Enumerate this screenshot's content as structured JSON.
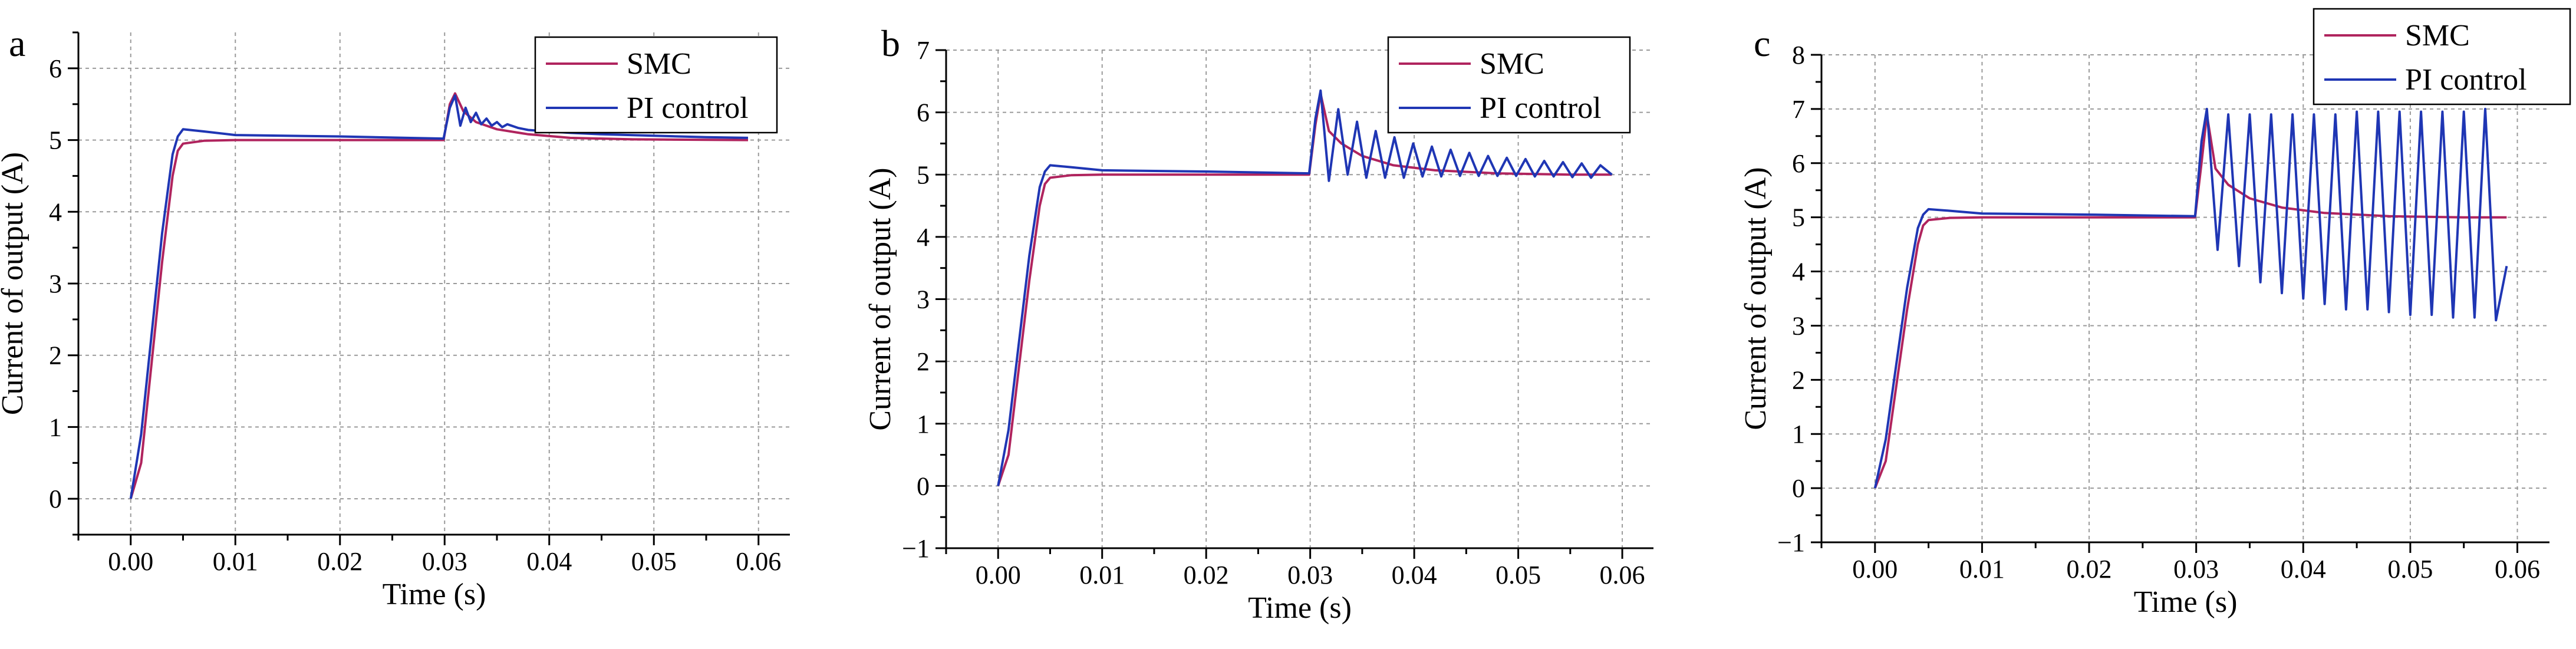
{
  "colors": {
    "smc": "#b0245e",
    "pi": "#1f36b4"
  },
  "chart_data": [
    {
      "panel_label": "a",
      "type": "line",
      "xlabel": "Time (s)",
      "ylabel": "Current of output (A)",
      "xlim": [
        -0.005,
        0.063
      ],
      "ylim": [
        -0.5,
        6.5
      ],
      "xticks": [
        0.0,
        0.01,
        0.02,
        0.03,
        0.04,
        0.05,
        0.06
      ],
      "xtick_labels": [
        "0.00",
        "0.01",
        "0.02",
        "0.03",
        "0.04",
        "0.05",
        "0.06"
      ],
      "yticks": [
        0,
        1,
        2,
        3,
        4,
        5,
        6
      ],
      "ytick_labels": [
        "0",
        "1",
        "2",
        "3",
        "4",
        "5",
        "6"
      ],
      "grid": true,
      "legend": "top-right",
      "series": [
        {
          "name": "SMC",
          "color": "#b0245e",
          "x": [
            0.0,
            0.001,
            0.002,
            0.003,
            0.004,
            0.0045,
            0.005,
            0.007,
            0.01,
            0.02,
            0.0299,
            0.0305,
            0.031,
            0.0318,
            0.033,
            0.035,
            0.038,
            0.042,
            0.048,
            0.059
          ],
          "y": [
            0.0,
            0.5,
            1.9,
            3.3,
            4.5,
            4.85,
            4.95,
            4.99,
            5.0,
            5.0,
            5.0,
            5.5,
            5.65,
            5.4,
            5.25,
            5.15,
            5.08,
            5.03,
            5.01,
            5.0
          ]
        },
        {
          "name": "PI control",
          "color": "#1f36b4",
          "x": [
            0.0,
            0.001,
            0.002,
            0.003,
            0.004,
            0.0045,
            0.005,
            0.007,
            0.01,
            0.02,
            0.0299,
            0.0305,
            0.031,
            0.0315,
            0.032,
            0.0325,
            0.033,
            0.0335,
            0.034,
            0.0345,
            0.035,
            0.0355,
            0.036,
            0.037,
            0.038,
            0.04,
            0.042,
            0.045,
            0.05,
            0.055,
            0.059
          ],
          "y": [
            0.0,
            0.9,
            2.3,
            3.7,
            4.8,
            5.05,
            5.15,
            5.12,
            5.07,
            5.05,
            5.02,
            5.45,
            5.62,
            5.2,
            5.45,
            5.25,
            5.38,
            5.22,
            5.3,
            5.2,
            5.25,
            5.18,
            5.22,
            5.17,
            5.14,
            5.12,
            5.1,
            5.08,
            5.06,
            5.04,
            5.03
          ]
        }
      ]
    },
    {
      "panel_label": "b",
      "type": "line",
      "xlabel": "Time (s)",
      "ylabel": "Current of output (A)",
      "xlim": [
        -0.005,
        0.063
      ],
      "ylim": [
        -1,
        7
      ],
      "xticks": [
        0.0,
        0.01,
        0.02,
        0.03,
        0.04,
        0.05,
        0.06
      ],
      "xtick_labels": [
        "0.00",
        "0.01",
        "0.02",
        "0.03",
        "0.04",
        "0.05",
        "0.06"
      ],
      "yticks": [
        -1,
        0,
        1,
        2,
        3,
        4,
        5,
        6,
        7
      ],
      "ytick_labels": [
        "−1",
        "0",
        "1",
        "2",
        "3",
        "4",
        "5",
        "6",
        "7"
      ],
      "grid": true,
      "legend": "top-right",
      "series": [
        {
          "name": "SMC",
          "color": "#b0245e",
          "x": [
            0.0,
            0.001,
            0.002,
            0.003,
            0.004,
            0.0045,
            0.005,
            0.007,
            0.01,
            0.02,
            0.0299,
            0.0305,
            0.031,
            0.0318,
            0.033,
            0.035,
            0.038,
            0.042,
            0.048,
            0.055,
            0.059
          ],
          "y": [
            0.0,
            0.5,
            1.9,
            3.3,
            4.5,
            4.85,
            4.95,
            4.99,
            5.0,
            5.0,
            5.0,
            5.8,
            6.3,
            5.7,
            5.5,
            5.3,
            5.15,
            5.07,
            5.02,
            5.0,
            5.0
          ]
        },
        {
          "name": "PI control",
          "color": "#1f36b4",
          "x": [
            0.0,
            0.001,
            0.002,
            0.003,
            0.004,
            0.0045,
            0.005,
            0.007,
            0.01,
            0.02,
            0.0299,
            0.0305,
            0.031,
            0.0318,
            0.0327,
            0.0336,
            0.0345,
            0.0354,
            0.0363,
            0.0372,
            0.0381,
            0.039,
            0.0399,
            0.0408,
            0.0417,
            0.0426,
            0.0435,
            0.0444,
            0.0453,
            0.0462,
            0.0471,
            0.048,
            0.0489,
            0.0498,
            0.0507,
            0.0516,
            0.0525,
            0.0534,
            0.0543,
            0.0552,
            0.0561,
            0.057,
            0.0579,
            0.059
          ],
          "y": [
            0.0,
            0.9,
            2.3,
            3.7,
            4.8,
            5.05,
            5.15,
            5.12,
            5.07,
            5.05,
            5.02,
            5.9,
            6.35,
            4.9,
            6.05,
            5.0,
            5.85,
            4.95,
            5.7,
            4.95,
            5.6,
            4.95,
            5.5,
            4.97,
            5.45,
            4.97,
            5.4,
            4.98,
            5.35,
            4.98,
            5.3,
            4.98,
            5.27,
            4.98,
            5.25,
            4.97,
            5.22,
            4.97,
            5.2,
            4.96,
            5.18,
            4.95,
            5.15,
            5.0
          ]
        }
      ]
    },
    {
      "panel_label": "c",
      "type": "line",
      "xlabel": "Time (s)",
      "ylabel": "Current of output (A)",
      "xlim": [
        -0.005,
        0.063
      ],
      "ylim": [
        -1,
        8
      ],
      "xticks": [
        0.0,
        0.01,
        0.02,
        0.03,
        0.04,
        0.05,
        0.06
      ],
      "xtick_labels": [
        "0.00",
        "0.01",
        "0.02",
        "0.03",
        "0.04",
        "0.05",
        "0.06"
      ],
      "yticks": [
        -1,
        0,
        1,
        2,
        3,
        4,
        5,
        6,
        7,
        8
      ],
      "ytick_labels": [
        "−1",
        "0",
        "1",
        "2",
        "3",
        "4",
        "5",
        "6",
        "7",
        "8"
      ],
      "grid": true,
      "legend": "top-right",
      "series": [
        {
          "name": "SMC",
          "color": "#b0245e",
          "x": [
            0.0,
            0.001,
            0.002,
            0.003,
            0.004,
            0.0045,
            0.005,
            0.007,
            0.01,
            0.02,
            0.0299,
            0.0305,
            0.031,
            0.0318,
            0.033,
            0.035,
            0.038,
            0.042,
            0.048,
            0.055,
            0.059
          ],
          "y": [
            0.0,
            0.5,
            1.9,
            3.3,
            4.5,
            4.85,
            4.95,
            4.99,
            5.0,
            5.0,
            5.0,
            6.0,
            6.9,
            5.9,
            5.6,
            5.35,
            5.18,
            5.08,
            5.02,
            5.0,
            5.0
          ]
        },
        {
          "name": "PI control",
          "color": "#1f36b4",
          "x": [
            0.0,
            0.001,
            0.002,
            0.003,
            0.004,
            0.0045,
            0.005,
            0.007,
            0.01,
            0.02,
            0.0299,
            0.0305,
            0.031,
            0.032,
            0.033,
            0.034,
            0.035,
            0.036,
            0.037,
            0.038,
            0.039,
            0.04,
            0.041,
            0.042,
            0.043,
            0.044,
            0.045,
            0.046,
            0.047,
            0.048,
            0.049,
            0.05,
            0.051,
            0.052,
            0.053,
            0.054,
            0.055,
            0.056,
            0.057,
            0.058,
            0.059
          ],
          "y": [
            0.0,
            0.9,
            2.3,
            3.7,
            4.8,
            5.05,
            5.15,
            5.12,
            5.07,
            5.05,
            5.02,
            6.4,
            7.0,
            4.4,
            6.9,
            4.1,
            6.9,
            3.8,
            6.9,
            3.6,
            6.9,
            3.5,
            6.9,
            3.4,
            6.9,
            3.3,
            6.95,
            3.3,
            6.95,
            3.25,
            6.95,
            3.2,
            6.95,
            3.2,
            6.95,
            3.15,
            6.95,
            3.15,
            7.0,
            3.1,
            4.1
          ]
        }
      ]
    }
  ]
}
